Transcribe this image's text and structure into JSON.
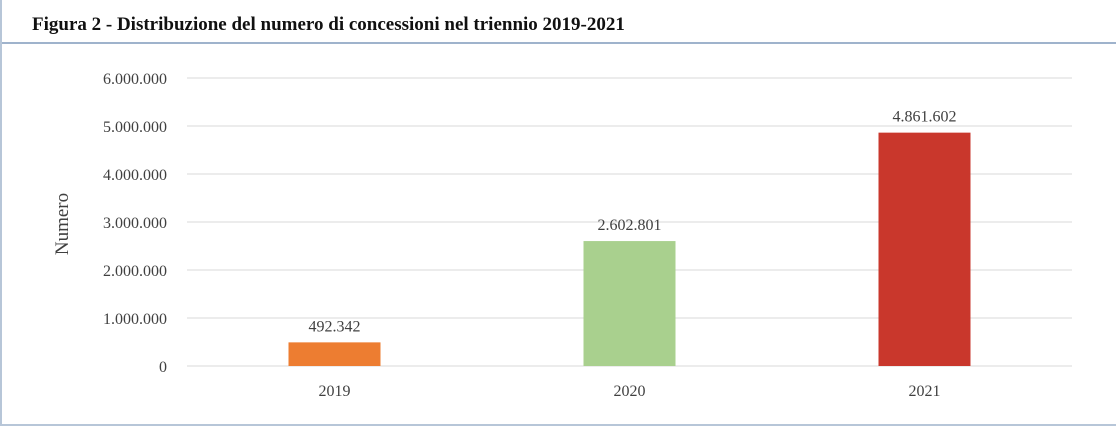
{
  "colors": {
    "bar_2019": "#ed7d31",
    "bar_2020": "#a9d08e",
    "bar_2021": "#c9372c",
    "grid": "#d9d9d9",
    "title_rule": "#9fb3cc"
  },
  "chart_data": {
    "type": "bar",
    "title": "Figura 2 - Distribuzione del numero di concessioni nel triennio 2019-2021",
    "xlabel": "",
    "ylabel": "Numero",
    "categories": [
      "2019",
      "2020",
      "2021"
    ],
    "values": [
      492342,
      2602801,
      4861602
    ],
    "data_labels": [
      "492.342",
      "2.602.801",
      "4.861.602"
    ],
    "ylim": [
      0,
      6000000
    ],
    "yticks": [
      0,
      1000000,
      2000000,
      3000000,
      4000000,
      5000000,
      6000000
    ],
    "ytick_labels": [
      "0",
      "1.000.000",
      "2.000.000",
      "3.000.000",
      "4.000.000",
      "5.000.000",
      "6.000.000"
    ],
    "grid": true,
    "legend": "none"
  }
}
